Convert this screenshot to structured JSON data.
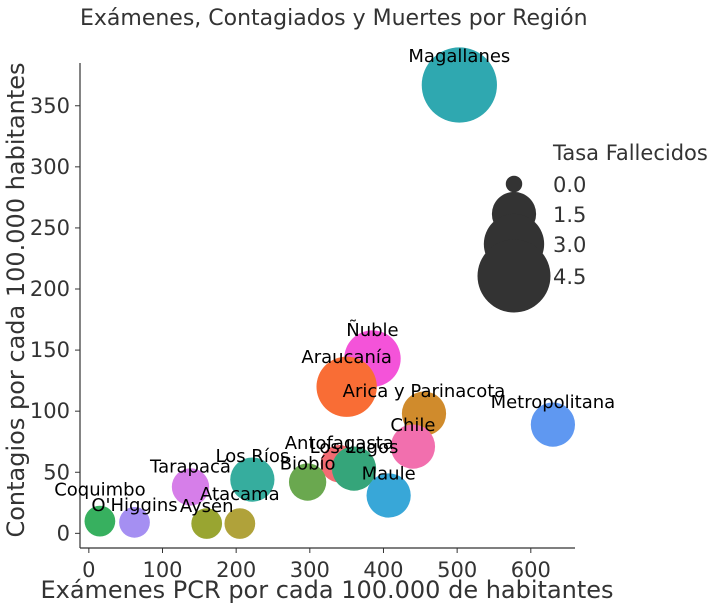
{
  "chart_data": {
    "type": "scatter",
    "title": "Exámenes, Contagiados y Muertes por Región",
    "xlabel": "Exámenes PCR por cada 100.000 de habitantes",
    "ylabel": "Contagios por cada 100.000 habitantes",
    "xlim": [
      -12,
      660
    ],
    "ylim": [
      -12,
      385
    ],
    "xticks": [
      0,
      100,
      200,
      300,
      400,
      500,
      600
    ],
    "yticks": [
      0,
      50,
      100,
      150,
      200,
      250,
      300,
      350
    ],
    "size_legend": {
      "title": "Tasa Fallecidos",
      "position": "right",
      "values": [
        0.0,
        1.5,
        3.0,
        4.5
      ],
      "labels": [
        "0.0",
        "1.5",
        "3.0",
        "4.5"
      ]
    },
    "points": [
      {
        "label": "Magallanes",
        "x": 503,
        "y": 367,
        "size": 4.8,
        "color": "#2fa8b0"
      },
      {
        "label": "Ñuble",
        "x": 385,
        "y": 143,
        "size": 2.6,
        "color": "#f453d9"
      },
      {
        "label": "Araucanía",
        "x": 350,
        "y": 120,
        "size": 3.0,
        "color": "#f96d35"
      },
      {
        "label": "Arica y Parinacota",
        "x": 455,
        "y": 98,
        "size": 1.5,
        "color": "#d08b2c"
      },
      {
        "label": "Metropolitana",
        "x": 630,
        "y": 89,
        "size": 1.5,
        "color": "#5f98f1"
      },
      {
        "label": "Chile",
        "x": 440,
        "y": 71,
        "size": 1.5,
        "color": "#f26fae"
      },
      {
        "label": "Antofagasta",
        "x": 340,
        "y": 57,
        "size": 1.0,
        "color": "#f36b72"
      },
      {
        "label": "Los Lagos",
        "x": 360,
        "y": 53,
        "size": 1.5,
        "color": "#35a57a"
      },
      {
        "label": "Los Ríos",
        "x": 222,
        "y": 44,
        "size": 1.5,
        "color": "#36ad9e"
      },
      {
        "label": "Biobío",
        "x": 297,
        "y": 42,
        "size": 1.0,
        "color": "#6aa84f"
      },
      {
        "label": "Tarapacá",
        "x": 138,
        "y": 38,
        "size": 1.0,
        "color": "#d67ee9"
      },
      {
        "label": "Maule",
        "x": 407,
        "y": 31,
        "size": 1.5,
        "color": "#38a7d8"
      },
      {
        "label": "Coquimbo",
        "x": 15,
        "y": 10,
        "size": 0.6,
        "color": "#37b05f"
      },
      {
        "label": "O'Higgins",
        "x": 62,
        "y": 9,
        "size": 0.6,
        "color": "#a58ff2"
      },
      {
        "label": "Aysén",
        "x": 160,
        "y": 8,
        "size": 0.6,
        "color": "#99a531"
      },
      {
        "label": "Atacama",
        "x": 205,
        "y": 8,
        "size": 0.6,
        "color": "#b0a23a"
      }
    ]
  }
}
